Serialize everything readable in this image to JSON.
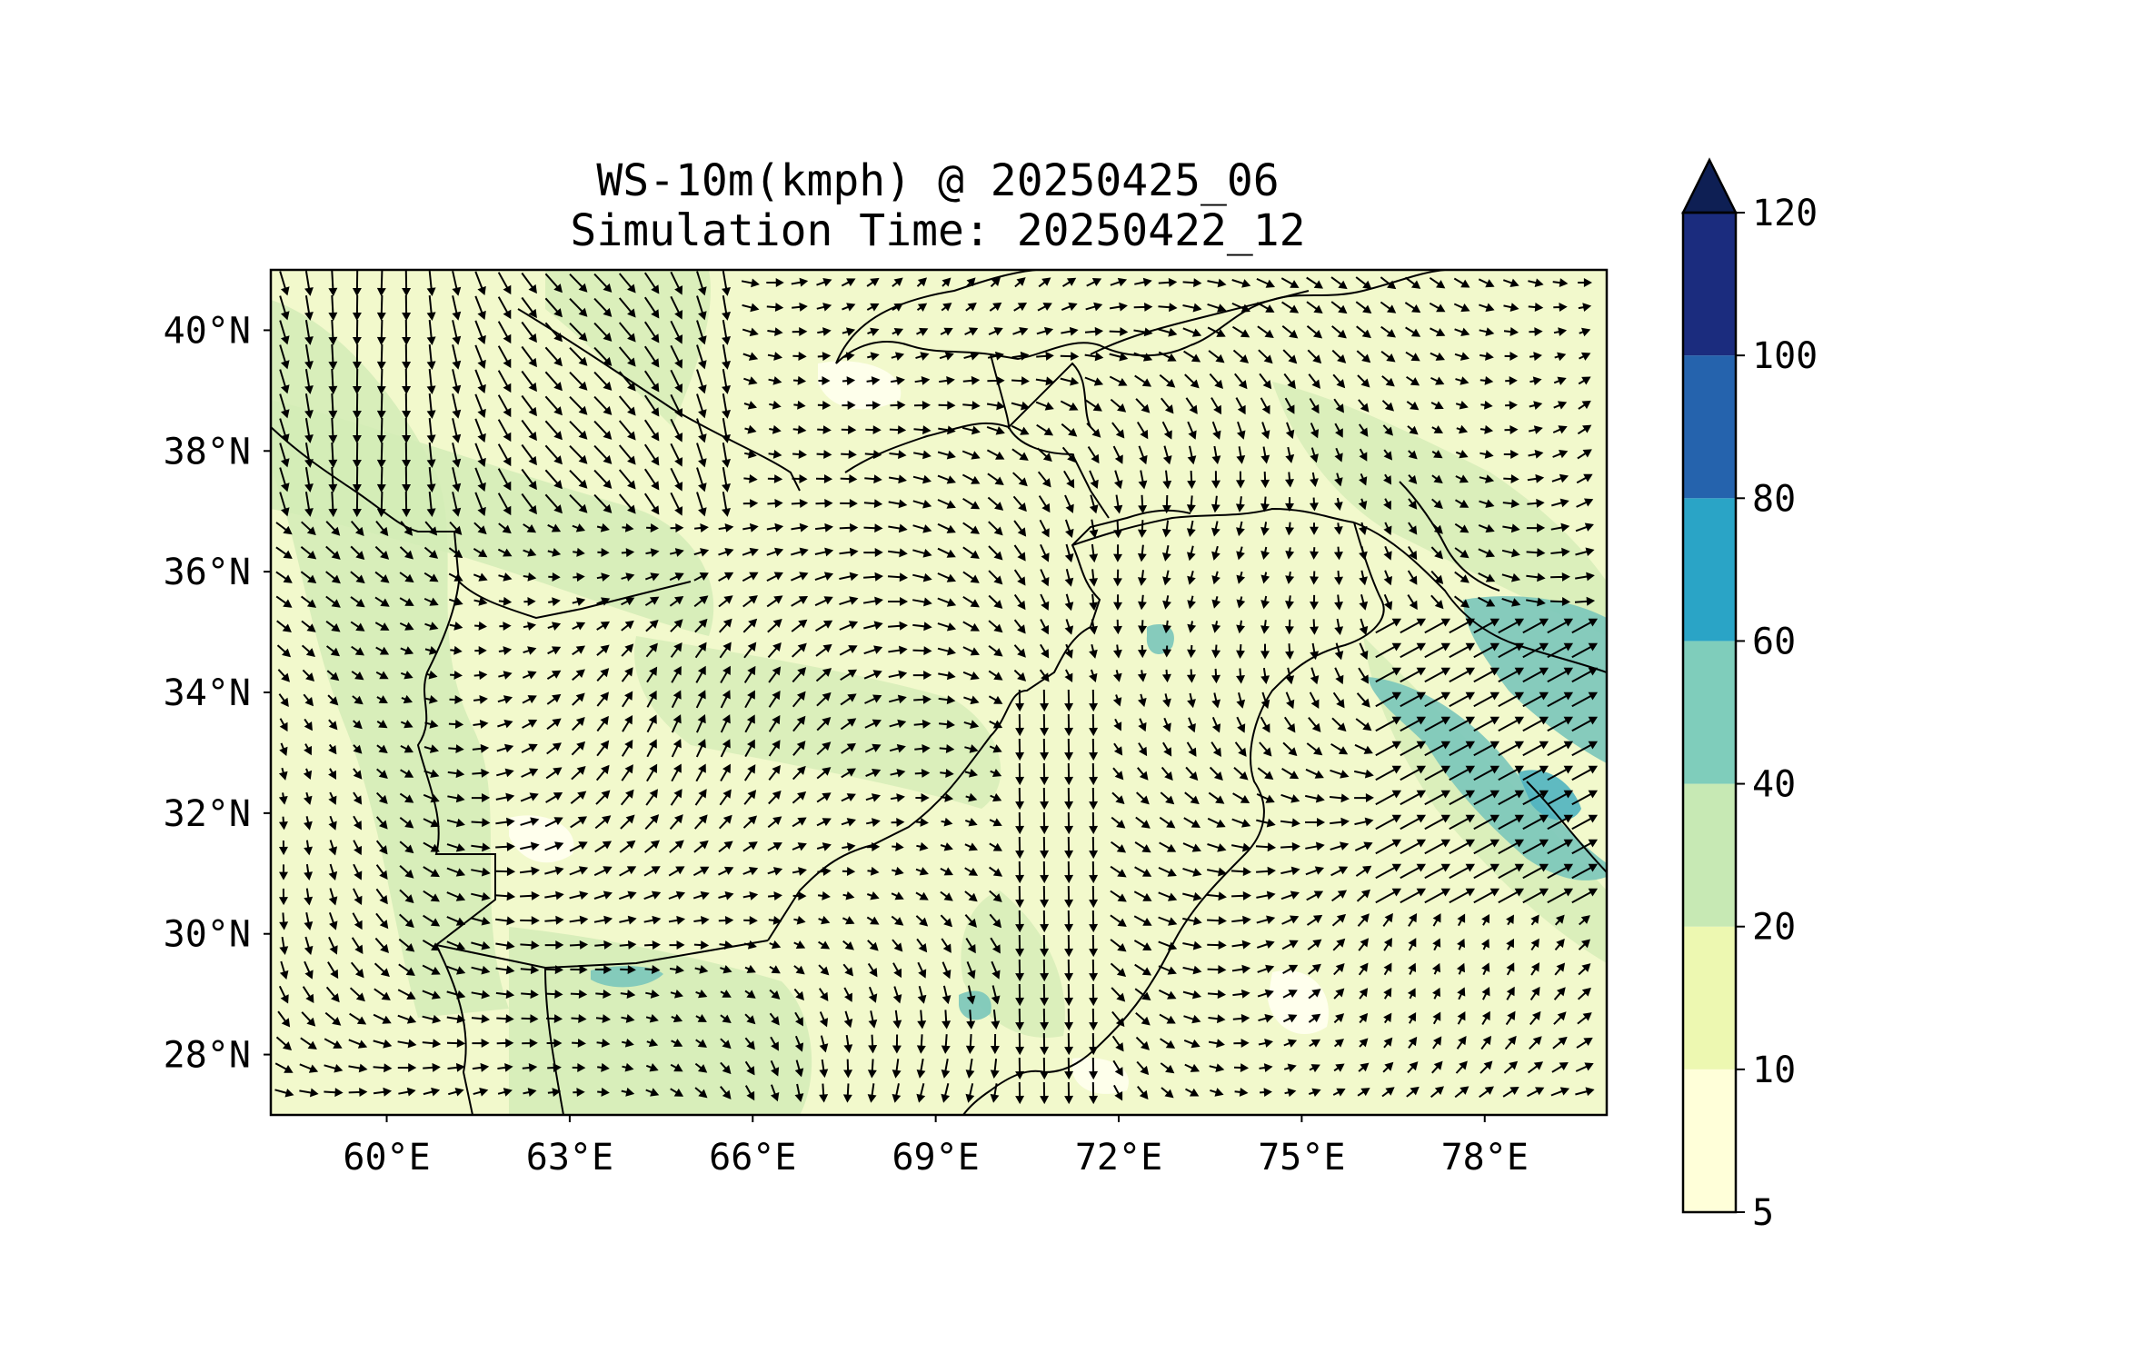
{
  "title_line1": "WS-10m(kmph) @ 20250425_06",
  "title_line2": "Simulation Time: 20250422_12",
  "map": {
    "lon_range": [
      58.1,
      80.0
    ],
    "lat_range": [
      27.0,
      41.0
    ],
    "lon_ticks": [
      {
        "value": 60,
        "label": "60°E"
      },
      {
        "value": 63,
        "label": "63°E"
      },
      {
        "value": 66,
        "label": "66°E"
      },
      {
        "value": 69,
        "label": "69°E"
      },
      {
        "value": 72,
        "label": "72°E"
      },
      {
        "value": 75,
        "label": "75°E"
      },
      {
        "value": 78,
        "label": "78°E"
      }
    ],
    "lat_ticks": [
      {
        "value": 40,
        "label": "40°N"
      },
      {
        "value": 38,
        "label": "38°N"
      },
      {
        "value": 36,
        "label": "36°N"
      },
      {
        "value": 34,
        "label": "34°N"
      },
      {
        "value": 32,
        "label": "32°N"
      },
      {
        "value": 30,
        "label": "30°N"
      },
      {
        "value": 28,
        "label": "28°N"
      }
    ],
    "background_color": "#f2f9cc",
    "border_color": "#000000",
    "vector_color": "#000000"
  },
  "colorbar": {
    "extend": "max",
    "levels": [
      {
        "value": 5,
        "label": "5"
      },
      {
        "value": 10,
        "label": "10"
      },
      {
        "value": 20,
        "label": "20"
      },
      {
        "value": 40,
        "label": "40"
      },
      {
        "value": 60,
        "label": "60"
      },
      {
        "value": 80,
        "label": "80"
      },
      {
        "value": 100,
        "label": "100"
      },
      {
        "value": 120,
        "label": "120"
      }
    ],
    "colors": [
      "#ffffd9",
      "#edf8b1",
      "#c7e9b4",
      "#7fcdbb",
      "#2aa4c6",
      "#2563ad",
      "#1b2c7e"
    ],
    "extend_color": "#0e1f54"
  }
}
